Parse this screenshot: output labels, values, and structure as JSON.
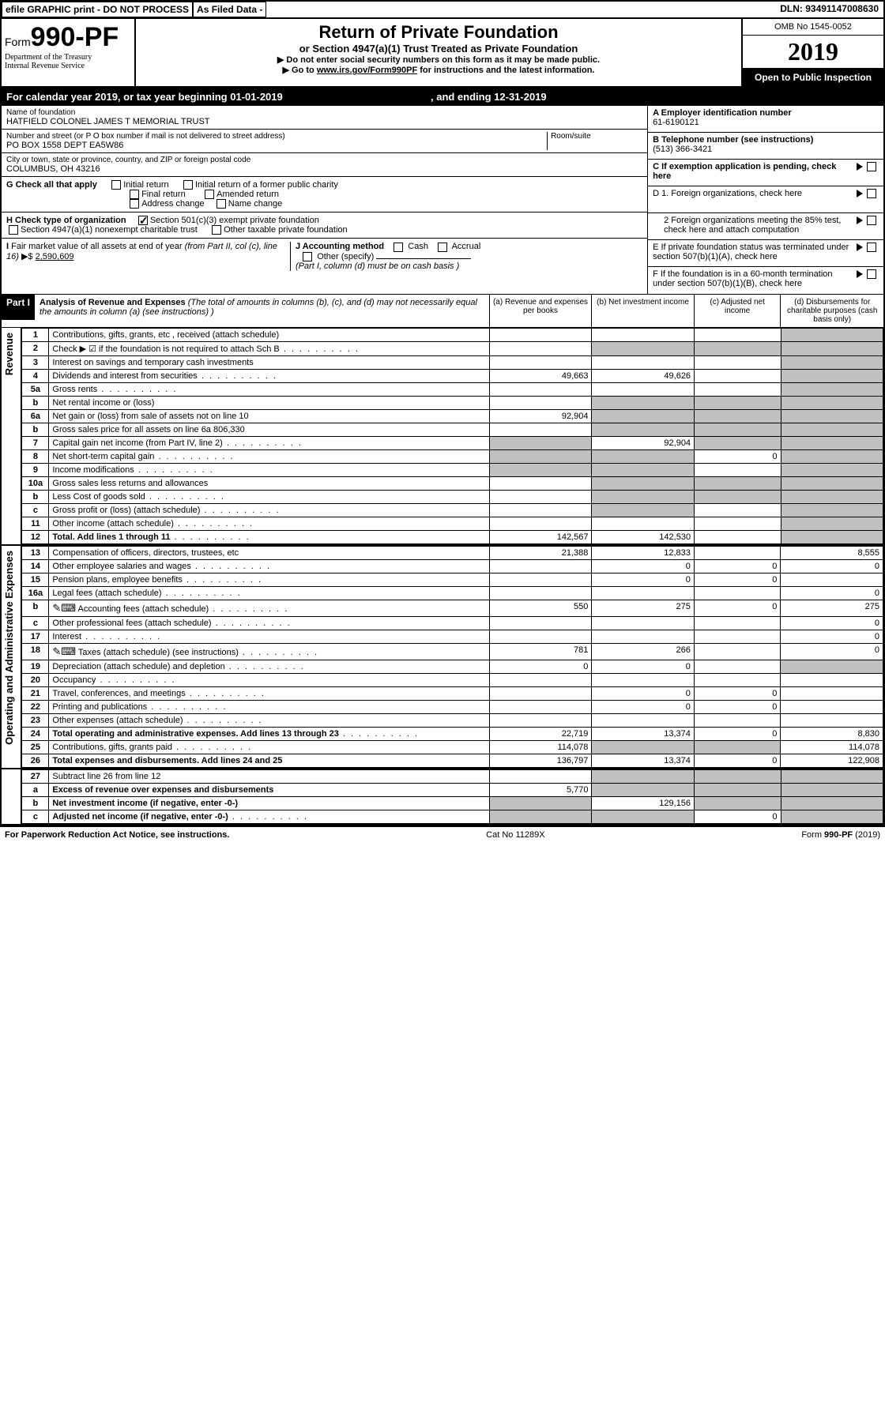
{
  "header": {
    "efile_text": "efile GRAPHIC print - DO NOT PROCESS",
    "as_filed": "As Filed Data -",
    "dln_label": "DLN:",
    "dln": "93491147008630",
    "form_label": "Form",
    "form_number": "990-PF",
    "dept1": "Department of the Treasury",
    "dept2": "Internal Revenue Service",
    "title": "Return of Private Foundation",
    "subtitle": "or Section 4947(a)(1) Trust Treated as Private Foundation",
    "instr1": "▶ Do not enter social security numbers on this form as it may be made public.",
    "instr2_pre": "▶ Go to ",
    "instr2_link": "www.irs.gov/Form990PF",
    "instr2_post": " for instructions and the latest information.",
    "omb": "OMB No 1545-0052",
    "year": "2019",
    "open": "Open to Public Inspection"
  },
  "cal": {
    "text_pre": "For calendar year 2019, or tax year beginning ",
    "begin": "01-01-2019",
    "text_mid": ", and ending ",
    "end": "12-31-2019"
  },
  "info": {
    "name_label": "Name of foundation",
    "name": "HATFIELD COLONEL JAMES T MEMORIAL TRUST",
    "addr_label": "Number and street (or P O  box number if mail is not delivered to street address)",
    "room_label": "Room/suite",
    "addr": "PO BOX 1558 DEPT EA5W86",
    "city_label": "City or town, state or province, country, and ZIP or foreign postal code",
    "city": "COLUMBUS, OH  43216",
    "a_label": "A Employer identification number",
    "a_val": "61-6190121",
    "b_label": "B Telephone number (see instructions)",
    "b_val": "(513) 366-3421",
    "c_label": "C If exemption application is pending, check here"
  },
  "g": {
    "label": "G Check all that apply",
    "opts": [
      "Initial return",
      "Initial return of a former public charity",
      "Final return",
      "Amended return",
      "Address change",
      "Name change"
    ]
  },
  "h": {
    "label": "H Check type of organization",
    "opt1": "Section 501(c)(3) exempt private foundation",
    "opt2": "Section 4947(a)(1) nonexempt charitable trust",
    "opt3": "Other taxable private foundation"
  },
  "d": {
    "d1": "D 1. Foreign organizations, check here",
    "d2": "2  Foreign organizations meeting the 85% test, check here and attach computation",
    "e": "E   If private foundation status was terminated under section 507(b)(1)(A), check here",
    "f": "F   If the foundation is in a 60-month termination under section 507(b)(1)(B), check here"
  },
  "i": {
    "label_i": "I Fair market value of all assets at end of year (from Part II, col  (c), line 16) ▶$ ",
    "i_val": "2,590,609",
    "label_j": "J Accounting method",
    "j_cash": "Cash",
    "j_accrual": "Accrual",
    "j_other": "Other (specify)",
    "j_note": "(Part I, column (d) must be on cash basis )"
  },
  "part1": {
    "badge": "Part I",
    "title": "Analysis of Revenue and Expenses",
    "note": "(The total of amounts in columns (b), (c), and (d) may not necessarily equal the amounts in column (a) (see instructions) )",
    "col_a": "(a)   Revenue and expenses per books",
    "col_b": "(b)  Net investment income",
    "col_c": "(c)  Adjusted net income",
    "col_d": "(d)  Disbursements for charitable purposes (cash basis only)"
  },
  "side": {
    "revenue": "Revenue",
    "expenses": "Operating and Administrative Expenses"
  },
  "lines": [
    {
      "no": "1",
      "desc": "Contributions, gifts, grants, etc , received (attach schedule)",
      "a": "",
      "b": "",
      "c": "",
      "d": "",
      "d_grey": true
    },
    {
      "no": "2",
      "desc": "Check ▶ ☑ if the foundation is not required to attach Sch  B",
      "dots": true,
      "a": "",
      "b": "",
      "c": "",
      "d": "",
      "b_grey": true,
      "c_grey": true,
      "d_grey": true
    },
    {
      "no": "3",
      "desc": "Interest on savings and temporary cash investments",
      "a": "",
      "b": "",
      "c": "",
      "d": "",
      "d_grey": true
    },
    {
      "no": "4",
      "desc": "Dividends and interest from securities",
      "dots": true,
      "a": "49,663",
      "b": "49,626",
      "c": "",
      "d": "",
      "d_grey": true
    },
    {
      "no": "5a",
      "desc": "Gross rents",
      "dots": true,
      "a": "",
      "b": "",
      "c": "",
      "d": "",
      "d_grey": true
    },
    {
      "no": "b",
      "desc": "Net rental income or (loss)",
      "a": "",
      "b": "",
      "c": "",
      "d": "",
      "b_grey": true,
      "c_grey": true,
      "d_grey": true
    },
    {
      "no": "6a",
      "desc": "Net gain or (loss) from sale of assets not on line 10",
      "a": "92,904",
      "b": "",
      "c": "",
      "d": "",
      "b_grey": true,
      "c_grey": true,
      "d_grey": true
    },
    {
      "no": "b",
      "desc": "Gross sales price for all assets on line 6a             806,330",
      "a": "",
      "b": "",
      "c": "",
      "d": "",
      "b_grey": true,
      "c_grey": true,
      "d_grey": true
    },
    {
      "no": "7",
      "desc": "Capital gain net income (from Part IV, line 2)",
      "dots": true,
      "a": "",
      "b": "92,904",
      "c": "",
      "d": "",
      "a_grey": true,
      "c_grey": true,
      "d_grey": true
    },
    {
      "no": "8",
      "desc": "Net short-term capital gain",
      "dots": true,
      "a": "",
      "b": "",
      "c": "0",
      "d": "",
      "a_grey": true,
      "b_grey": true,
      "d_grey": true
    },
    {
      "no": "9",
      "desc": "Income modifications",
      "dots": true,
      "a": "",
      "b": "",
      "c": "",
      "d": "",
      "a_grey": true,
      "b_grey": true,
      "d_grey": true
    },
    {
      "no": "10a",
      "desc": "Gross sales less returns and allowances",
      "a": "",
      "b": "",
      "c": "",
      "d": "",
      "b_grey": true,
      "c_grey": true,
      "d_grey": true
    },
    {
      "no": "b",
      "desc": "Less  Cost of goods sold",
      "dots": true,
      "a": "",
      "b": "",
      "c": "",
      "d": "",
      "b_grey": true,
      "c_grey": true,
      "d_grey": true
    },
    {
      "no": "c",
      "desc": "Gross profit or (loss) (attach schedule)",
      "dots": true,
      "a": "",
      "b": "",
      "c": "",
      "d": "",
      "b_grey": true,
      "d_grey": true
    },
    {
      "no": "11",
      "desc": "Other income (attach schedule)",
      "dots": true,
      "a": "",
      "b": "",
      "c": "",
      "d": "",
      "d_grey": true
    },
    {
      "no": "12",
      "desc": "Total. Add lines 1 through 11",
      "dots": true,
      "bold": true,
      "a": "142,567",
      "b": "142,530",
      "c": "",
      "d": "",
      "d_grey": true
    }
  ],
  "exp_lines": [
    {
      "no": "13",
      "desc": "Compensation of officers, directors, trustees, etc",
      "a": "21,388",
      "b": "12,833",
      "c": "",
      "d": "8,555"
    },
    {
      "no": "14",
      "desc": "Other employee salaries and wages",
      "dots": true,
      "a": "",
      "b": "0",
      "c": "0",
      "d": "0"
    },
    {
      "no": "15",
      "desc": "Pension plans, employee benefits",
      "dots": true,
      "a": "",
      "b": "0",
      "c": "0",
      "d": ""
    },
    {
      "no": "16a",
      "desc": "Legal fees (attach schedule)",
      "dots": true,
      "a": "",
      "b": "",
      "c": "",
      "d": "0"
    },
    {
      "no": "b",
      "desc": "Accounting fees (attach schedule)",
      "dots": true,
      "icon": true,
      "a": "550",
      "b": "275",
      "c": "0",
      "d": "275"
    },
    {
      "no": "c",
      "desc": "Other professional fees (attach schedule)",
      "dots": true,
      "a": "",
      "b": "",
      "c": "",
      "d": "0"
    },
    {
      "no": "17",
      "desc": "Interest",
      "dots": true,
      "a": "",
      "b": "",
      "c": "",
      "d": "0"
    },
    {
      "no": "18",
      "desc": "Taxes (attach schedule) (see instructions)",
      "dots": true,
      "icon": true,
      "a": "781",
      "b": "266",
      "c": "",
      "d": "0"
    },
    {
      "no": "19",
      "desc": "Depreciation (attach schedule) and depletion",
      "dots": true,
      "a": "0",
      "b": "0",
      "c": "",
      "d": "",
      "d_grey": true
    },
    {
      "no": "20",
      "desc": "Occupancy",
      "dots": true,
      "a": "",
      "b": "",
      "c": "",
      "d": ""
    },
    {
      "no": "21",
      "desc": "Travel, conferences, and meetings",
      "dots": true,
      "a": "",
      "b": "0",
      "c": "0",
      "d": ""
    },
    {
      "no": "22",
      "desc": "Printing and publications",
      "dots": true,
      "a": "",
      "b": "0",
      "c": "0",
      "d": ""
    },
    {
      "no": "23",
      "desc": "Other expenses (attach schedule)",
      "dots": true,
      "a": "",
      "b": "",
      "c": "",
      "d": ""
    },
    {
      "no": "24",
      "desc": "Total operating and administrative expenses. Add lines 13 through 23",
      "dots": true,
      "bold": true,
      "a": "22,719",
      "b": "13,374",
      "c": "0",
      "d": "8,830"
    },
    {
      "no": "25",
      "desc": "Contributions, gifts, grants paid",
      "dots": true,
      "a": "114,078",
      "b": "",
      "c": "",
      "d": "114,078",
      "b_grey": true,
      "c_grey": true
    },
    {
      "no": "26",
      "desc": "Total expenses and disbursements. Add lines 24 and 25",
      "bold": true,
      "a": "136,797",
      "b": "13,374",
      "c": "0",
      "d": "122,908"
    }
  ],
  "net_lines": [
    {
      "no": "27",
      "desc": "Subtract line 26 from line 12",
      "a": "",
      "b": "",
      "c": "",
      "d": "",
      "b_grey": true,
      "c_grey": true,
      "d_grey": true
    },
    {
      "no": "a",
      "desc": "Excess of revenue over expenses and disbursements",
      "bold": true,
      "a": "5,770",
      "b": "",
      "c": "",
      "d": "",
      "b_grey": true,
      "c_grey": true,
      "d_grey": true
    },
    {
      "no": "b",
      "desc": "Net investment income (if negative, enter -0-)",
      "bold": true,
      "a": "",
      "b": "129,156",
      "c": "",
      "d": "",
      "a_grey": true,
      "c_grey": true,
      "d_grey": true
    },
    {
      "no": "c",
      "desc": "Adjusted net income (if negative, enter -0-)",
      "dots": true,
      "bold": true,
      "a": "",
      "b": "",
      "c": "0",
      "d": "",
      "a_grey": true,
      "b_grey": true,
      "d_grey": true
    }
  ],
  "footer": {
    "left": "For Paperwork Reduction Act Notice, see instructions.",
    "mid": "Cat  No  11289X",
    "right": "Form 990-PF (2019)"
  }
}
